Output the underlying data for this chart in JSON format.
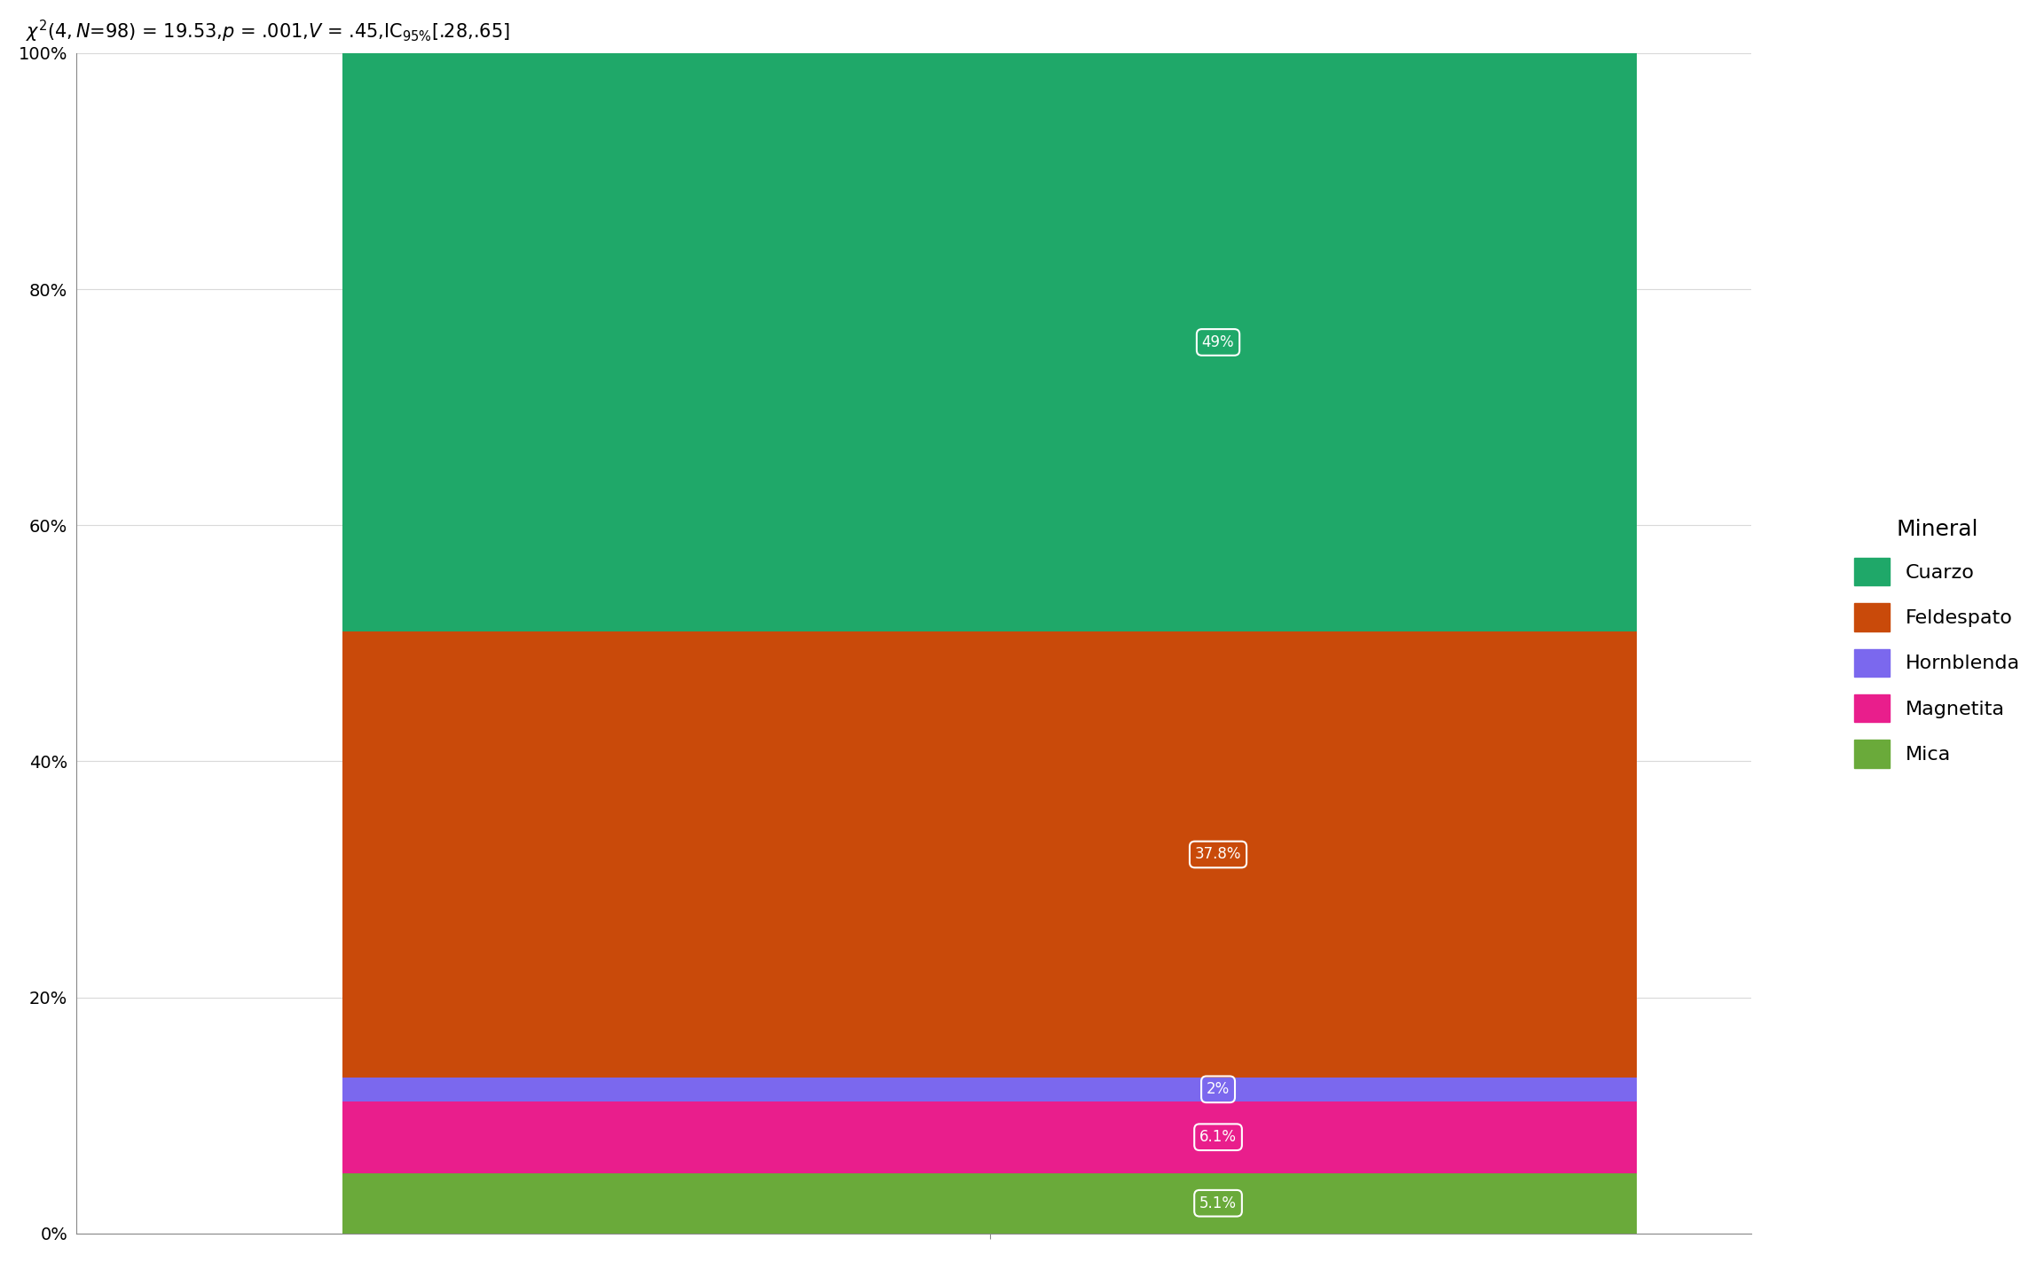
{
  "minerals": [
    "Mica",
    "Magnetita",
    "Hornblenda",
    "Feldespato",
    "Cuarzo"
  ],
  "values": [
    5.1,
    6.1,
    2.0,
    37.8,
    49.0
  ],
  "colors": [
    "#6aaa3a",
    "#e91e8c",
    "#7b68ee",
    "#c94a0a",
    "#1fa869"
  ],
  "legend_colors": [
    "#1fa869",
    "#c94a0a",
    "#7b68ee",
    "#e91e8c",
    "#6aaa3a"
  ],
  "legend_labels": [
    "Cuarzo",
    "Feldespato",
    "Hornblenda",
    "Magnetita",
    "Mica"
  ],
  "legend_title": "Mineral",
  "label_texts": [
    "5.1%",
    "6.1%",
    "2%",
    "37.8%",
    "49%"
  ],
  "ytick_values": [
    0,
    20,
    40,
    60,
    80,
    100
  ],
  "ytick_labels": [
    "0%",
    "20%",
    "40%",
    "60%",
    "80%",
    "100%"
  ],
  "background_color": "#ffffff",
  "grid_color": "#d9d9d9",
  "title_fontsize": 15,
  "tick_fontsize": 14,
  "legend_fontsize": 16,
  "legend_title_fontsize": 18,
  "label_fontsize": 12
}
